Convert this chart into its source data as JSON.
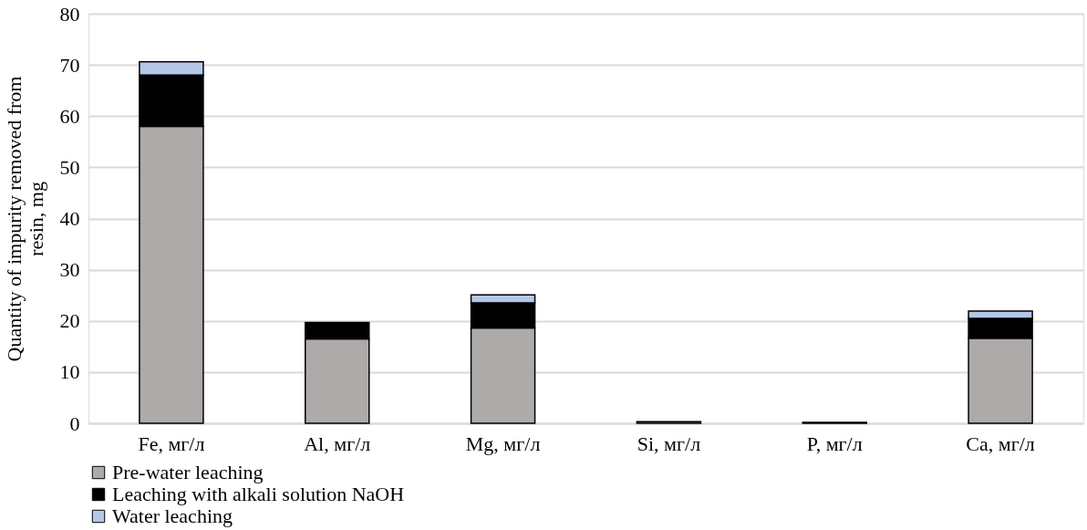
{
  "chart_data": {
    "type": "bar",
    "stacked": true,
    "ylabel": "Quantity of impurity removed from resin, mg",
    "categories": [
      "Fe, мг/л",
      "Al, мг/л",
      "Mg, мг/л",
      "Si, мг/л",
      "P, мг/л",
      "Ca, мг/л"
    ],
    "series": [
      {
        "name": "Pre-water leaching",
        "color": "#aeaaaa",
        "values": [
          58,
          16.5,
          18.6,
          0.3,
          0.2,
          16.6
        ]
      },
      {
        "name": "Leaching with alkali solution NaOH",
        "color": "#000000",
        "values": [
          10,
          3.2,
          4.9,
          0,
          0,
          3.9
        ]
      },
      {
        "name": "Water leaching",
        "color": "#b4c7e7",
        "values": [
          2.6,
          0,
          1.6,
          0,
          0,
          1.4
        ]
      }
    ],
    "ylim": [
      0,
      80
    ],
    "yticks": [
      0,
      10,
      20,
      30,
      40,
      50,
      60,
      70,
      80
    ],
    "grid": "y",
    "legend": "bottom"
  }
}
